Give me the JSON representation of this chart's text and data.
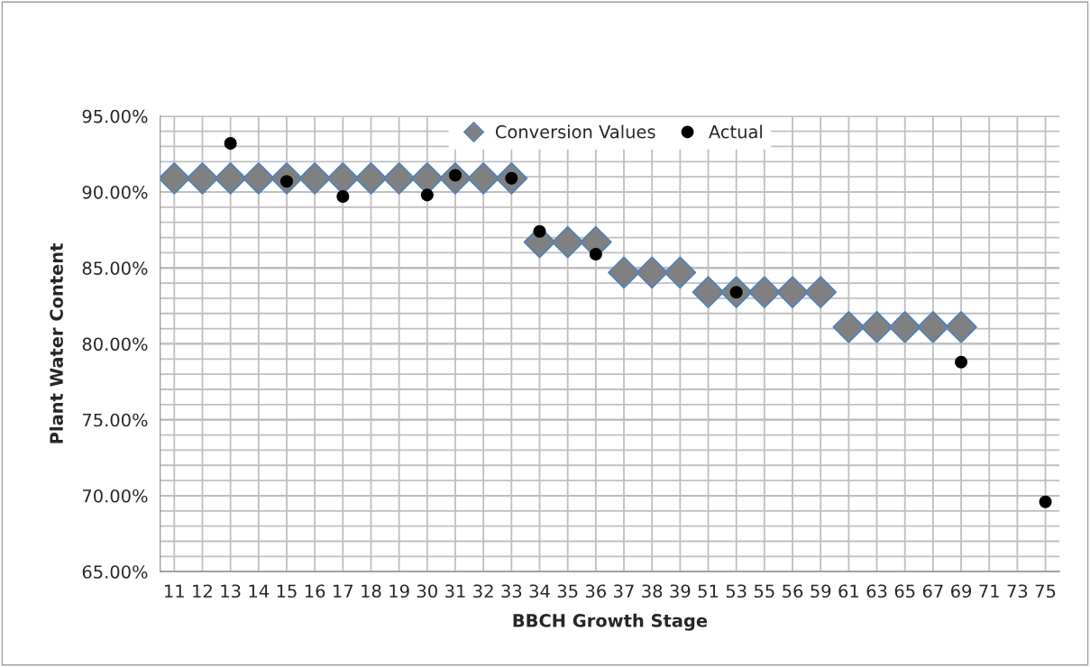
{
  "chart_data": {
    "type": "scatter",
    "xlabel": "BBCH Growth Stage",
    "ylabel": "Plant Water Content",
    "categories": [
      "11",
      "12",
      "13",
      "14",
      "15",
      "16",
      "17",
      "18",
      "19",
      "30",
      "31",
      "32",
      "33",
      "34",
      "35",
      "36",
      "37",
      "38",
      "39",
      "51",
      "53",
      "55",
      "56",
      "59",
      "61",
      "63",
      "65",
      "67",
      "69",
      "71",
      "73",
      "75"
    ],
    "series": [
      {
        "name": "Conversion Values",
        "color": "#808080",
        "marker": "diamond",
        "values": [
          90.9,
          90.9,
          90.9,
          90.9,
          90.9,
          90.9,
          90.9,
          90.9,
          90.9,
          90.9,
          90.9,
          90.9,
          90.9,
          86.7,
          86.7,
          86.7,
          84.7,
          84.7,
          84.7,
          83.4,
          83.4,
          83.4,
          83.4,
          83.4,
          81.1,
          81.1,
          81.1,
          81.1,
          81.1,
          null,
          null,
          null
        ]
      },
      {
        "name": "Actual",
        "color": "#000000",
        "marker": "circle",
        "values": [
          null,
          null,
          93.2,
          null,
          90.7,
          null,
          89.7,
          null,
          null,
          89.8,
          91.1,
          null,
          90.9,
          87.4,
          null,
          85.9,
          null,
          null,
          null,
          null,
          83.4,
          null,
          null,
          null,
          null,
          null,
          null,
          null,
          78.8,
          null,
          null,
          69.6
        ]
      }
    ],
    "ylim": [
      65,
      95
    ],
    "yticks": [
      {
        "value": 65,
        "label": "65.00%"
      },
      {
        "value": 66,
        "label": null
      },
      {
        "value": 67,
        "label": null
      },
      {
        "value": 68,
        "label": null
      },
      {
        "value": 69,
        "label": null
      },
      {
        "value": 70,
        "label": "70.00%"
      },
      {
        "value": 71,
        "label": null
      },
      {
        "value": 72,
        "label": null
      },
      {
        "value": 73,
        "label": null
      },
      {
        "value": 74,
        "label": null
      },
      {
        "value": 75,
        "label": "75.00%"
      },
      {
        "value": 76,
        "label": null
      },
      {
        "value": 77,
        "label": null
      },
      {
        "value": 78,
        "label": null
      },
      {
        "value": 79,
        "label": null
      },
      {
        "value": 80,
        "label": "80.00%"
      },
      {
        "value": 81,
        "label": null
      },
      {
        "value": 82,
        "label": null
      },
      {
        "value": 83,
        "label": null
      },
      {
        "value": 84,
        "label": null
      },
      {
        "value": 85,
        "label": "85.00%"
      },
      {
        "value": 86,
        "label": null
      },
      {
        "value": 87,
        "label": null
      },
      {
        "value": 88,
        "label": null
      },
      {
        "value": 89,
        "label": null
      },
      {
        "value": 90,
        "label": "90.00%"
      },
      {
        "value": 91,
        "label": null
      },
      {
        "value": 92,
        "label": null
      },
      {
        "value": 93,
        "label": null
      },
      {
        "value": 94,
        "label": null
      },
      {
        "value": 95,
        "label": "95.00%"
      }
    ],
    "grid": true,
    "legend": "top"
  }
}
